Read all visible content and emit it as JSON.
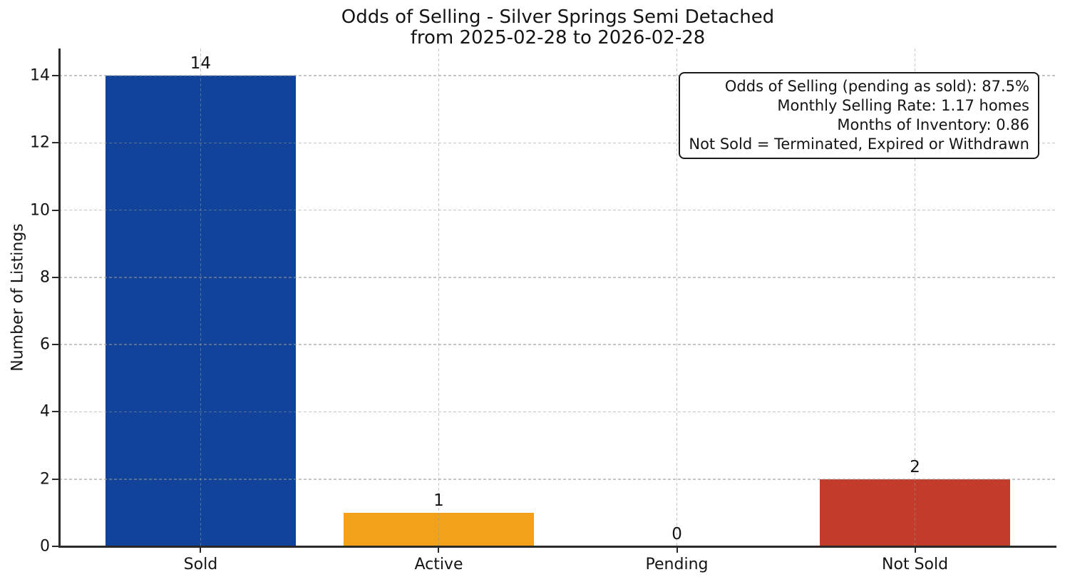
{
  "chart_data": {
    "type": "bar",
    "title": "Odds of Selling - Silver Springs Semi Detached",
    "subtitle": "from 2025-02-28 to 2026-02-28",
    "xlabel": "",
    "ylabel": "Number of Listings",
    "categories": [
      "Sold",
      "Active",
      "Pending",
      "Not Sold"
    ],
    "values": [
      14,
      1,
      0,
      2
    ],
    "bar_value_labels": [
      "14",
      "1",
      "0",
      "2"
    ],
    "bar_colors": [
      "#11439b",
      "#f2a11a",
      null,
      "#c33b2b"
    ],
    "yticks": [
      "0",
      "2",
      "4",
      "6",
      "8",
      "10",
      "12",
      "14"
    ],
    "ytick_values": [
      0,
      2,
      4,
      6,
      8,
      10,
      12,
      14
    ],
    "ylim": [
      0,
      14.81
    ],
    "xlim": [
      -0.594,
      3.594
    ],
    "bar_width": 0.8,
    "grid": "dashed, both axes, drawn over bars",
    "legend": "none",
    "annotation_box": {
      "position": "top-right",
      "lines": [
        "Odds of Selling (pending as sold): 87.5%",
        "Monthly Selling Rate: 1.17 homes",
        "Months of Inventory: 0.86",
        "Not Sold = Terminated, Expired or Withdrawn"
      ]
    },
    "colors": {
      "sold_bar": "#11439b",
      "active_bar": "#f2a11a",
      "not_sold_bar": "#c33b2b",
      "text": "#141414",
      "spine": "#2a2a2a",
      "grid": "#c9c9c9",
      "background": "#ffffff"
    }
  }
}
